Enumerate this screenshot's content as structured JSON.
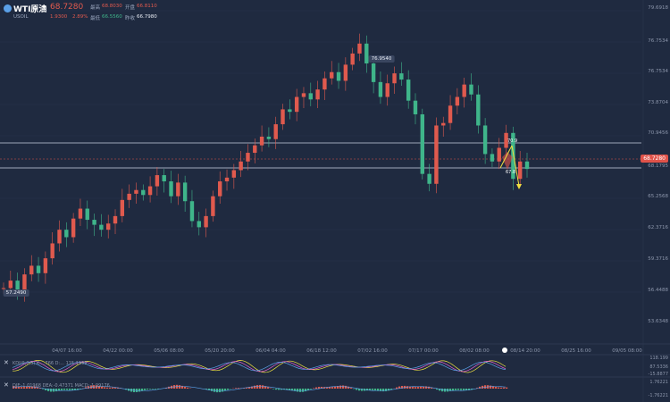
{
  "header": {
    "symbol_name": "WTI原油",
    "symbol_code": "USOIL",
    "price": "68.7280",
    "change": "1.9300",
    "change_pct": "2.89%",
    "stats": [
      {
        "label": "最高",
        "value": "68.8030",
        "color": "#e05a4e"
      },
      {
        "label": "开盘",
        "value": "66.8110",
        "color": "#e05a4e"
      },
      {
        "label": "最低",
        "value": "66.5560",
        "color": "#3fb58a"
      },
      {
        "label": "昨收",
        "value": "66.7980",
        "color": "#e8ecf4"
      }
    ]
  },
  "price_axis": [
    "79.6918",
    "76.7534",
    "73.8704",
    "70.9456",
    "68.1795",
    "65.2568",
    "62.3716",
    "59.3716",
    "56.4488",
    "53.6348"
  ],
  "current_price_tag": "68.7280",
  "time_axis": [
    "04/07 16:00",
    "04/22 00:00",
    "05/06 08:00",
    "05/20 20:00",
    "06/04 04:00",
    "06/18 12:00",
    "07/02 16:00",
    "07/17 00:00",
    "08/02 08:00",
    "08/14 20:00",
    "08/25 16:00",
    "09/05 08:00"
  ],
  "annotations": {
    "high_label": "76.9540",
    "low_label": "57.2490",
    "arrow_top": "70.9",
    "arrow_mid": "67.8"
  },
  "indicator1": {
    "label": "KDJ(9,3,3) K:...766 D:... 115.1199",
    "axis": [
      "118.199",
      "87.5336",
      "-15.8877"
    ]
  },
  "indicator2": {
    "label": "DIF:-1.01968  DEA:-0.47371  MACD:-1.09176",
    "axis": [
      "1.76221",
      "-1.76221"
    ]
  },
  "colors": {
    "up": "#e05a4e",
    "down": "#3fb58a",
    "bg": "#1f2a40"
  },
  "chart_data": {
    "type": "candlestick",
    "series": [
      {
        "name": "USOIL",
        "values": [
          57.2,
          57.8,
          57.0,
          58.3,
          59.0,
          58.4,
          59.6,
          60.8,
          61.9,
          61.3,
          62.8,
          63.6,
          62.7,
          62.3,
          61.9,
          62.4,
          63.0,
          64.3,
          64.8,
          65.1,
          64.7,
          65.4,
          66.3,
          65.8,
          64.6,
          65.7,
          64.2,
          62.6,
          62.1,
          63.0,
          64.6,
          65.8,
          66.1,
          66.7,
          67.4,
          68.1,
          68.7,
          69.4,
          69.2,
          70.4,
          71.6,
          71.4,
          72.6,
          72.9,
          72.4,
          73.2,
          74.1,
          74.6,
          73.9,
          75.2,
          76.1,
          76.9,
          75.3,
          73.8,
          72.6,
          73.7,
          74.5,
          74.0,
          72.3,
          71.2,
          66.4,
          65.6,
          70.3,
          70.5,
          71.9,
          72.6,
          73.6,
          72.8,
          70.3,
          68.0,
          67.4,
          68.5,
          69.7,
          66.0,
          67.4,
          66.8
        ]
      }
    ],
    "y_range": [
      53.6348,
      79.6918
    ]
  }
}
